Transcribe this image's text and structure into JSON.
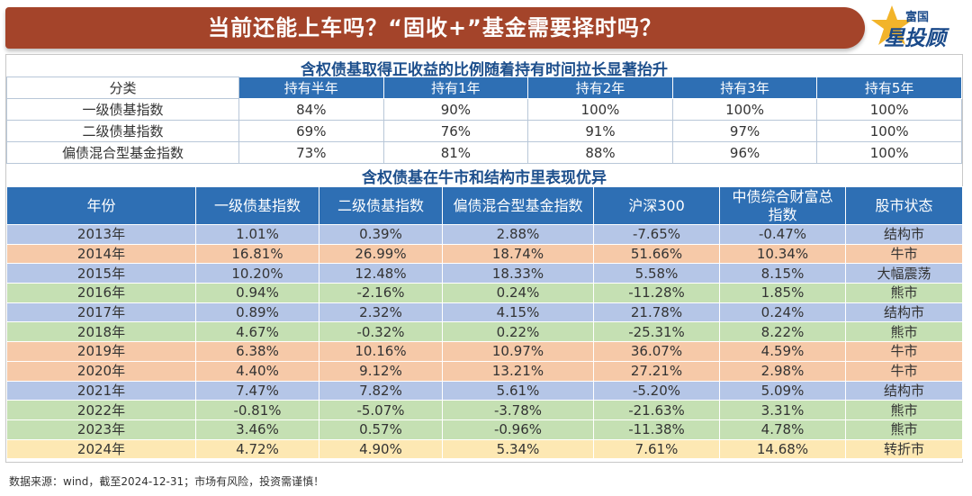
{
  "title": "当前还能上车吗？“固收+”基金需要择时吗？",
  "logo": {
    "top": "富国",
    "main": "星投顾"
  },
  "section1": {
    "title": "含权债基取得正收益的比例随着持有时间拉长显著抬升",
    "headers": [
      "分类",
      "持有半年",
      "持有1年",
      "持有2年",
      "持有3年",
      "持有5年"
    ],
    "rows": [
      [
        "一级债基指数",
        "84%",
        "90%",
        "100%",
        "100%",
        "100%"
      ],
      [
        "二级债基指数",
        "69%",
        "76%",
        "91%",
        "97%",
        "100%"
      ],
      [
        "偏债混合型基金指数",
        "73%",
        "81%",
        "88%",
        "96%",
        "100%"
      ]
    ]
  },
  "section2": {
    "title": "含权债基在牛市和结构市里表现优异",
    "headers": [
      "年份",
      "一级债基指数",
      "二级债基指数",
      "偏债混合型基金指数",
      "沪深300",
      "中债综合财富总指数",
      "股市状态"
    ],
    "rows": [
      {
        "type": "jiegou",
        "cells": [
          "2013年",
          "1.01%",
          "0.39%",
          "2.88%",
          "-7.65%",
          "-0.47%",
          "结构市"
        ]
      },
      {
        "type": "niu",
        "cells": [
          "2014年",
          "16.81%",
          "26.99%",
          "18.74%",
          "51.66%",
          "10.34%",
          "牛市"
        ]
      },
      {
        "type": "zhendang",
        "cells": [
          "2015年",
          "10.20%",
          "12.48%",
          "18.33%",
          "5.58%",
          "8.15%",
          "大幅震荡"
        ]
      },
      {
        "type": "xiong",
        "cells": [
          "2016年",
          "0.94%",
          "-2.16%",
          "0.24%",
          "-11.28%",
          "1.85%",
          "熊市"
        ]
      },
      {
        "type": "jiegou",
        "cells": [
          "2017年",
          "0.89%",
          "2.32%",
          "4.15%",
          "21.78%",
          "0.24%",
          "结构市"
        ]
      },
      {
        "type": "xiong",
        "cells": [
          "2018年",
          "4.67%",
          "-0.32%",
          "0.22%",
          "-25.31%",
          "8.22%",
          "熊市"
        ]
      },
      {
        "type": "niu",
        "cells": [
          "2019年",
          "6.38%",
          "10.16%",
          "10.97%",
          "36.07%",
          "4.59%",
          "牛市"
        ]
      },
      {
        "type": "niu",
        "cells": [
          "2020年",
          "4.40%",
          "9.12%",
          "13.21%",
          "27.21%",
          "2.98%",
          "牛市"
        ]
      },
      {
        "type": "jiegou",
        "cells": [
          "2021年",
          "7.47%",
          "7.82%",
          "5.61%",
          "-5.20%",
          "5.09%",
          "结构市"
        ]
      },
      {
        "type": "xiong",
        "cells": [
          "2022年",
          "-0.81%",
          "-5.07%",
          "-3.78%",
          "-21.63%",
          "3.31%",
          "熊市"
        ]
      },
      {
        "type": "xiong",
        "cells": [
          "2023年",
          "3.46%",
          "0.57%",
          "-0.96%",
          "-11.38%",
          "4.78%",
          "熊市"
        ]
      },
      {
        "type": "zhuanzhe",
        "cells": [
          "2024年",
          "4.72%",
          "4.90%",
          "5.34%",
          "7.61%",
          "14.68%",
          "转折市"
        ]
      }
    ]
  },
  "footer": "数据来源：wind，截至2024-12-31；市场有风险，投资需谨慎！"
}
